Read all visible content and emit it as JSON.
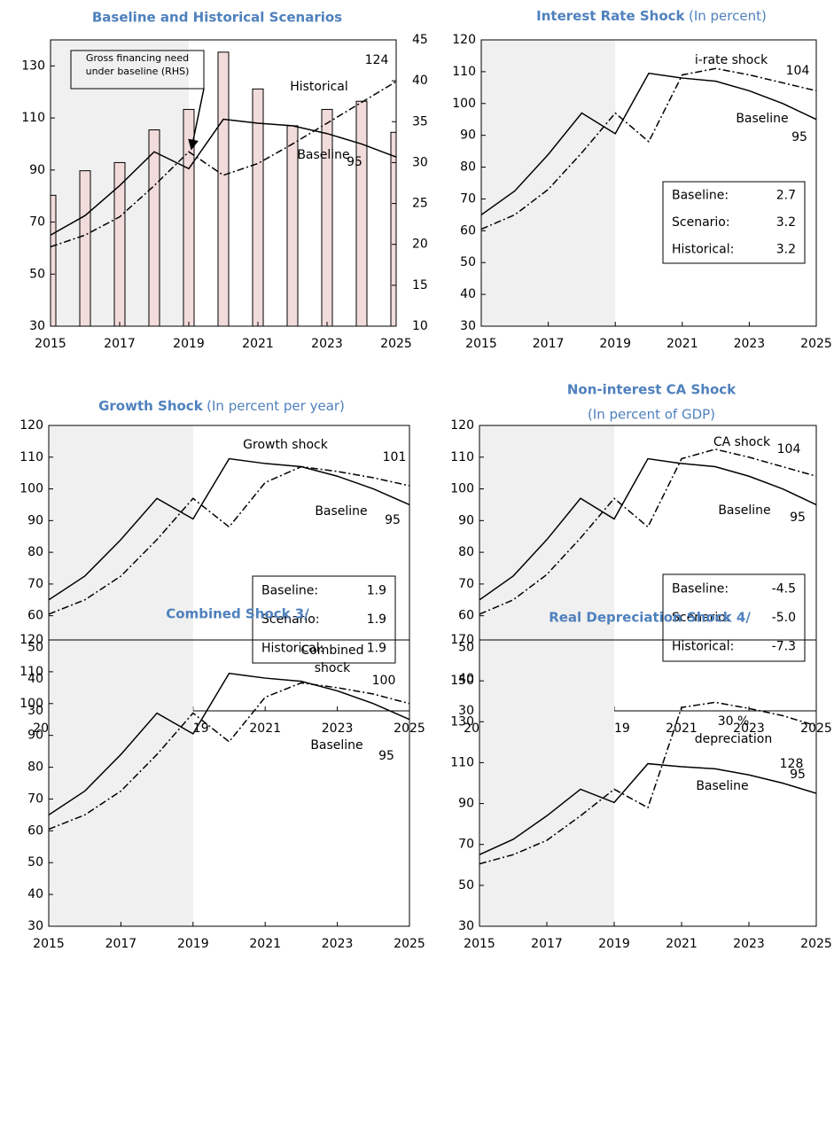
{
  "chart_data": [
    {
      "type": "line",
      "title": "Baseline and Historical Scenarios",
      "x": [
        2015,
        2016,
        2017,
        2018,
        2019,
        2020,
        2021,
        2022,
        2023,
        2024,
        2025
      ],
      "xlim": [
        2015,
        2025
      ],
      "xticks": [
        2015,
        2017,
        2019,
        2021,
        2023,
        2025
      ],
      "ylim": [
        30,
        140
      ],
      "yticks": [
        30,
        50,
        70,
        90,
        110,
        130
      ],
      "y2lim": [
        10,
        45
      ],
      "y2ticks": [
        10,
        15,
        20,
        25,
        30,
        35,
        40,
        45
      ],
      "shade": [
        2015,
        2019
      ],
      "series": [
        {
          "name": "Gross financing need under baseline (RHS)",
          "type": "bar",
          "axis": "y2",
          "color": "#f2dcdb",
          "values": [
            26,
            29,
            30,
            34,
            36.5,
            43.5,
            39,
            34.5,
            36.5,
            37.5,
            33.7
          ]
        },
        {
          "name": "Historical",
          "type": "line",
          "dash": "dashdot",
          "color": "#000000",
          "values": [
            60.5,
            65,
            72,
            84,
            97,
            88,
            92.5,
            100,
            108,
            116,
            124
          ]
        },
        {
          "name": "Baseline",
          "type": "line",
          "dash": "solid",
          "color": "#000000",
          "values": [
            65,
            72.5,
            84,
            97,
            90.5,
            109.5,
            108,
            107,
            104,
            100,
            95
          ]
        }
      ]
    },
    {
      "type": "line",
      "title": "Interest Rate Shock",
      "subtitle": "(In percent)",
      "x": [
        2015,
        2016,
        2017,
        2018,
        2019,
        2020,
        2021,
        2022,
        2023,
        2024,
        2025
      ],
      "xlim": [
        2015,
        2025
      ],
      "xticks": [
        2015,
        2017,
        2019,
        2021,
        2023,
        2025
      ],
      "ylim": [
        30,
        120
      ],
      "yticks": [
        30,
        40,
        50,
        60,
        70,
        80,
        90,
        100,
        110,
        120
      ],
      "shade": [
        2015,
        2019
      ],
      "series": [
        {
          "name": "i-rate shock",
          "type": "line",
          "dash": "dashdot",
          "color": "#000000",
          "values": [
            60.5,
            65,
            73,
            84.5,
            97,
            88,
            109,
            111,
            109,
            106.5,
            104
          ]
        },
        {
          "name": "Baseline",
          "type": "line",
          "dash": "solid",
          "color": "#000000",
          "values": [
            65,
            72.5,
            84,
            97,
            90.5,
            109.5,
            108,
            107,
            104,
            100,
            95
          ]
        }
      ],
      "stats": [
        {
          "label": "Baseline:",
          "value": "2.7"
        },
        {
          "label": "Scenario:",
          "value": "3.2"
        },
        {
          "label": "Historical:",
          "value": "3.2"
        }
      ]
    },
    {
      "type": "line",
      "title": "Growth Shock",
      "subtitle": "(In percent per year)",
      "x": [
        2015,
        2016,
        2017,
        2018,
        2019,
        2020,
        2021,
        2022,
        2023,
        2024,
        2025
      ],
      "xlim": [
        2015,
        2025
      ],
      "xticks": [
        2015,
        2017,
        2019,
        2021,
        2023,
        2025
      ],
      "ylim": [
        30,
        120
      ],
      "yticks": [
        30,
        40,
        50,
        60,
        70,
        80,
        90,
        100,
        110,
        120
      ],
      "shade": [
        2015,
        2019
      ],
      "series": [
        {
          "name": "Growth shock",
          "type": "line",
          "dash": "dashdot",
          "color": "#000000",
          "values": [
            60.5,
            65,
            72.5,
            84,
            97,
            88,
            102,
            107,
            105.5,
            103.5,
            101
          ]
        },
        {
          "name": "Baseline",
          "type": "line",
          "dash": "solid",
          "color": "#000000",
          "values": [
            65,
            72.5,
            84,
            97,
            90.5,
            109.5,
            108,
            107,
            104,
            100,
            95
          ]
        }
      ],
      "stats": [
        {
          "label": "Baseline:",
          "value": "1.9"
        },
        {
          "label": "Scenario:",
          "value": "1.9"
        },
        {
          "label": "Historical:",
          "value": "1.9"
        }
      ]
    },
    {
      "type": "line",
      "title": "Non-interest CA Shock",
      "subtitle": "(In percent of GDP)",
      "x": [
        2015,
        2016,
        2017,
        2018,
        2019,
        2020,
        2021,
        2022,
        2023,
        2024,
        2025
      ],
      "xlim": [
        2015,
        2025
      ],
      "xticks": [
        2015,
        2017,
        2019,
        2021,
        2023,
        2025
      ],
      "ylim": [
        30,
        120
      ],
      "yticks": [
        30,
        40,
        50,
        60,
        70,
        80,
        90,
        100,
        110,
        120
      ],
      "shade": [
        2015,
        2019
      ],
      "series": [
        {
          "name": "CA shock",
          "type": "line",
          "dash": "dashdot",
          "color": "#000000",
          "values": [
            60.5,
            65,
            73,
            84.5,
            97,
            88,
            109.5,
            112.5,
            110,
            107,
            104
          ]
        },
        {
          "name": "Baseline",
          "type": "line",
          "dash": "solid",
          "color": "#000000",
          "values": [
            65,
            72.5,
            84,
            97,
            90.5,
            109.5,
            108,
            107,
            104,
            100,
            95
          ]
        }
      ],
      "stats": [
        {
          "label": "Baseline:",
          "value": "-4.5"
        },
        {
          "label": "Scenario:",
          "value": "-5.0"
        },
        {
          "label": "Historical:",
          "value": "-7.3"
        }
      ]
    },
    {
      "type": "line",
      "title": "Combined Shock  3/",
      "x": [
        2015,
        2016,
        2017,
        2018,
        2019,
        2020,
        2021,
        2022,
        2023,
        2024,
        2025
      ],
      "xlim": [
        2015,
        2025
      ],
      "xticks": [
        2015,
        2017,
        2019,
        2021,
        2023,
        2025
      ],
      "ylim": [
        30,
        120
      ],
      "yticks": [
        30,
        40,
        50,
        60,
        70,
        80,
        90,
        100,
        110,
        120
      ],
      "shade": [
        2015,
        2019
      ],
      "series": [
        {
          "name": "Combined shock",
          "type": "line",
          "dash": "dashdot",
          "color": "#000000",
          "values": [
            60.5,
            65,
            72.5,
            84,
            97,
            88,
            102,
            106.5,
            105,
            103,
            100
          ]
        },
        {
          "name": "Baseline",
          "type": "line",
          "dash": "solid",
          "color": "#000000",
          "values": [
            65,
            72.5,
            84,
            97,
            90.5,
            109.5,
            108,
            107,
            104,
            100,
            95
          ]
        }
      ]
    },
    {
      "type": "line",
      "title": "Real Depreciation Shock  4/",
      "x": [
        2015,
        2016,
        2017,
        2018,
        2019,
        2020,
        2021,
        2022,
        2023,
        2024,
        2025
      ],
      "xlim": [
        2015,
        2025
      ],
      "xticks": [
        2015,
        2017,
        2019,
        2021,
        2023,
        2025
      ],
      "ylim": [
        30,
        170
      ],
      "yticks": [
        30,
        50,
        70,
        90,
        110,
        130,
        150,
        170
      ],
      "shade": [
        2015,
        2019
      ],
      "series": [
        {
          "name": "30 % depreciation",
          "type": "line",
          "dash": "dashdot",
          "color": "#000000",
          "values": [
            60.5,
            65,
            72,
            84,
            97,
            88,
            137,
            139.5,
            136.5,
            133,
            128
          ]
        },
        {
          "name": "Baseline",
          "type": "line",
          "dash": "solid",
          "color": "#000000",
          "values": [
            65,
            72.5,
            84,
            97,
            90.5,
            109.5,
            108,
            107,
            104,
            100,
            95
          ]
        }
      ]
    }
  ]
}
